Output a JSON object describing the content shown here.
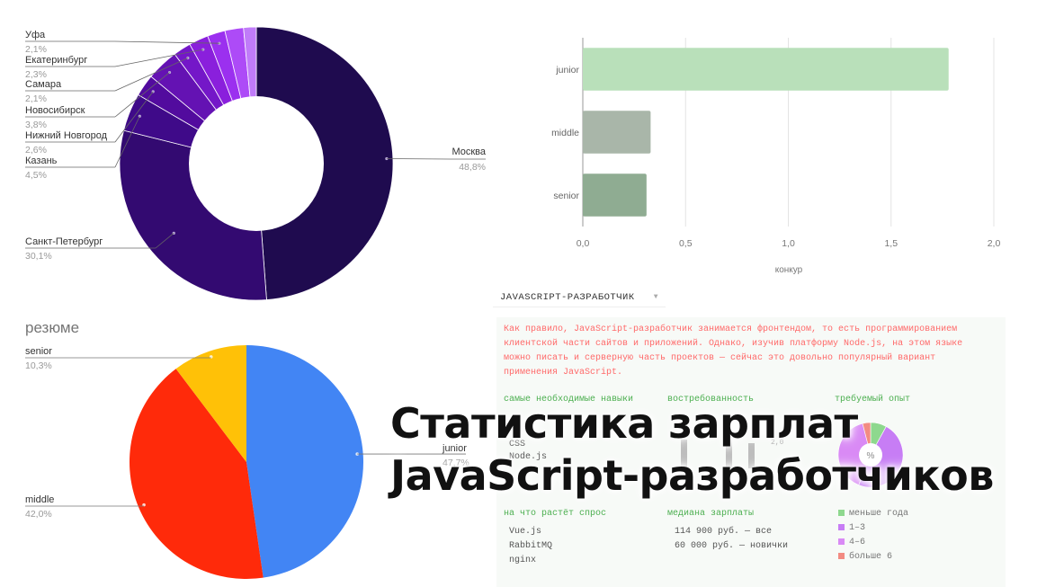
{
  "chart_data": [
    {
      "type": "donut",
      "title": "",
      "slices": [
        {
          "label": "Москва",
          "value": 48.8,
          "value_label": "48,8%",
          "color": "#1f0b4f"
        },
        {
          "label": "Санкт-Петербург",
          "value": 30.1,
          "value_label": "30,1%",
          "color": "#330a71"
        },
        {
          "label": "Казань",
          "value": 4.5,
          "value_label": "4,5%",
          "color": "#3f0a89"
        },
        {
          "label": "Нижний Новгород",
          "value": 2.6,
          "value_label": "2,6%",
          "color": "#520b9e"
        },
        {
          "label": "Новосибирск",
          "value": 3.8,
          "value_label": "3,8%",
          "color": "#6412b3"
        },
        {
          "label": "Самара",
          "value": 2.1,
          "value_label": "2,1%",
          "color": "#7417c8"
        },
        {
          "label": "Екатеринбург",
          "value": 2.3,
          "value_label": "2,3%",
          "color": "#8a1fdc"
        },
        {
          "label": "Уфа",
          "value": 2.1,
          "value_label": "2,1%",
          "color": "#9b30ef"
        },
        {
          "label": "",
          "value": 2.2,
          "value_label": "",
          "color": "#ad4bf7"
        },
        {
          "label": "",
          "value": 1.5,
          "value_label": "",
          "color": "#c07bf9"
        }
      ]
    },
    {
      "type": "bar",
      "orientation": "horizontal",
      "categories": [
        "junior",
        "middle",
        "senior"
      ],
      "values": [
        1.78,
        0.33,
        0.31
      ],
      "xlabel": "конкур",
      "ylabel": "",
      "xlim": [
        0,
        2.0
      ],
      "x_ticks": [
        "0,0",
        "0,5",
        "1,0",
        "1,5",
        "2,0"
      ],
      "colors": [
        "#b9e0ba",
        "#a9b6a9",
        "#8fac92"
      ],
      "grid": true
    },
    {
      "type": "pie",
      "title": "резюме",
      "slices": [
        {
          "label": "junior",
          "value": 47.7,
          "value_label": "47,7%",
          "color": "#4285f4"
        },
        {
          "label": "middle",
          "value": 42.0,
          "value_label": "42,0%",
          "color": "#ff2a0a"
        },
        {
          "label": "senior",
          "value": 10.3,
          "value_label": "10,3%",
          "color": "#ffc107"
        }
      ]
    }
  ],
  "panel": {
    "dropdown_label": "JAVASCRIPT-РАЗРАБОТЧИК",
    "caret": "▼",
    "description": "Как правило, JavaScript-разработчик занимается фронтендом, то есть программированием клиентской части сайтов и приложений. Однако, изучив платформу Node.js, на этом языке можно писать и серверную часть проектов — сейчас это довольно популярный вариант применения JavaScript.",
    "headers": {
      "skills": "самые необходимые навыки",
      "demand": "востребованность",
      "experience": "требуемый опыт",
      "growth": "на что растёт спрос",
      "median": "медиана зарплаты"
    },
    "skills": [
      "CSS",
      "Node.js"
    ],
    "demand_value": "2,0",
    "growth": [
      "Vue.js",
      "RabbitMQ",
      "nginx"
    ],
    "median": [
      "114 900 руб. — все",
      "60 000 руб. — новички"
    ],
    "experience_center": "%",
    "experience_legend": [
      {
        "label": "меньше года",
        "color": "#8ed88e"
      },
      {
        "label": "1–3",
        "color": "#c77df5"
      },
      {
        "label": "4–6",
        "color": "#d98af5"
      },
      {
        "label": "больше 6",
        "color": "#f28b82"
      }
    ],
    "experience_values": [
      8,
      48,
      40,
      4
    ]
  },
  "headline": {
    "line1": "Статистика зарплат",
    "line2": "JavaScript-разработчиков"
  }
}
